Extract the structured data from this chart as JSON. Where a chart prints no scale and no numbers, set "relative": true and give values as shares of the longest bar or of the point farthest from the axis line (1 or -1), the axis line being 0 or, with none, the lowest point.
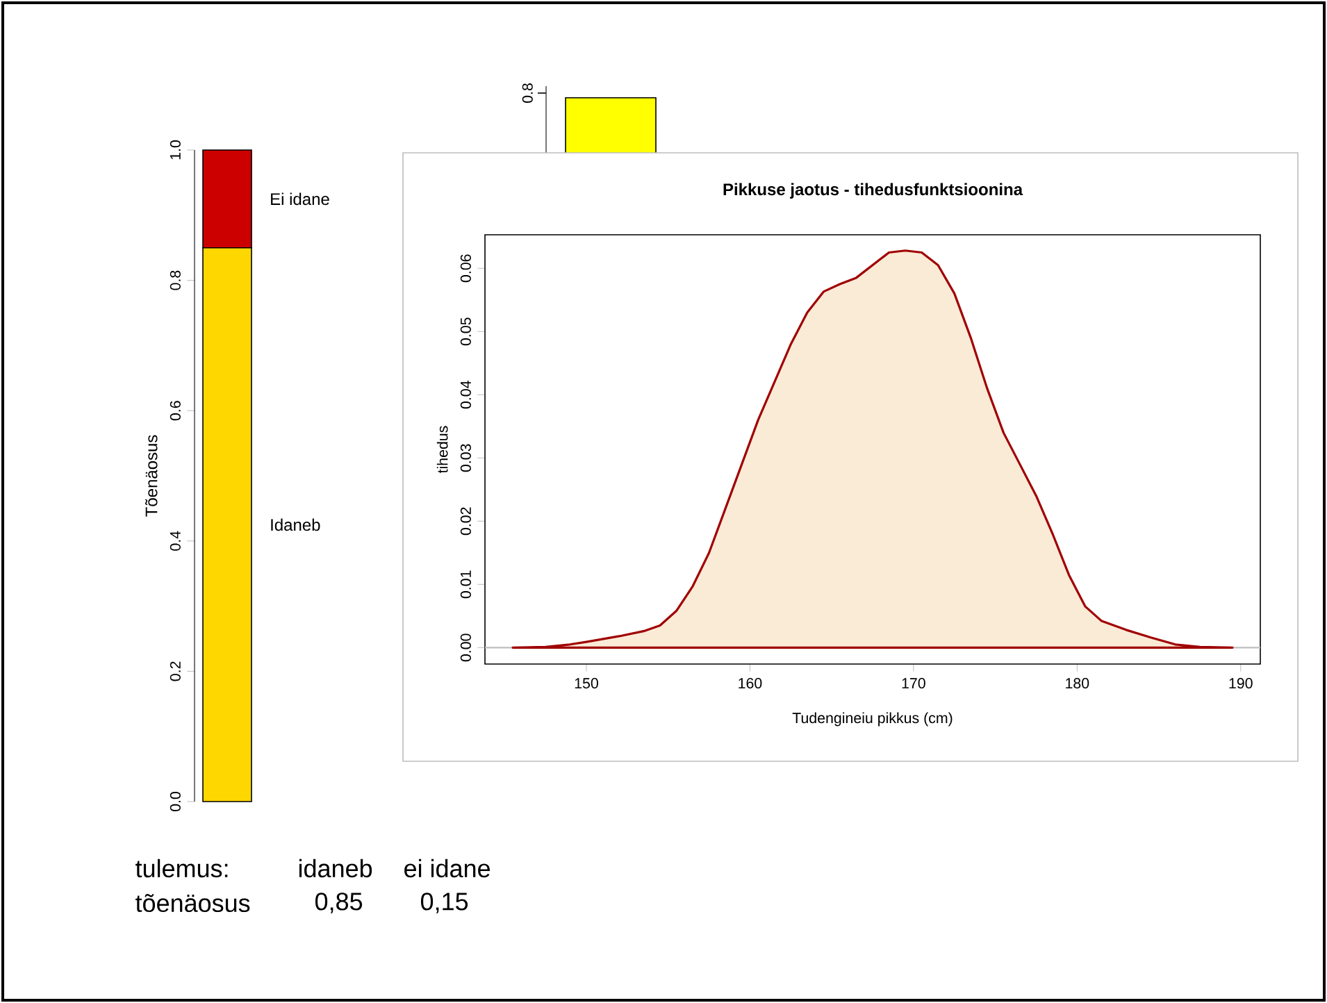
{
  "chart_data": [
    {
      "type": "bar",
      "stacked": true,
      "categories": [
        null
      ],
      "ylabel": "Tõenäosus",
      "ylim": [
        0,
        1
      ],
      "yticks": [
        {
          "value": 0,
          "label": "0.0"
        },
        {
          "value": 0.2,
          "label": "0.2"
        },
        {
          "value": 0.4,
          "label": "0.4"
        },
        {
          "value": 0.6,
          "label": "0.6"
        },
        {
          "value": 0.8,
          "label": "0.8"
        },
        {
          "value": 1,
          "label": "1.0"
        }
      ],
      "tick_labels": "y",
      "series": [
        {
          "name": "Idaneb",
          "color": "#ffd700",
          "values": [
            0.85
          ]
        },
        {
          "name": "Ei idane",
          "color": "#cd0000",
          "values": [
            0.15
          ]
        }
      ],
      "annotations": [
        "tulemus:",
        "idaneb",
        "ei idane",
        "tõenäosus",
        "0,85",
        "0,15"
      ]
    },
    {
      "type": "bar",
      "relative": true,
      "categories": [
        null
      ],
      "values": [
        1
      ],
      "color": "#ffff00",
      "annotations": [
        "0.8"
      ]
    },
    {
      "type": "area",
      "title": "Pikkuse jaotus - tihedusfunktsioonina",
      "xlabel": "Tudengineiu pikkus (cm)",
      "ylabel": "tihedus",
      "xlim": [
        143.8,
        191.2
      ],
      "ylim": [
        -0.0026,
        0.0653
      ],
      "xticks": [
        150,
        160,
        170,
        180,
        190
      ],
      "yticks": [
        {
          "value": 0,
          "label": "0.00"
        },
        {
          "value": 0.01,
          "label": "0.01"
        },
        {
          "value": 0.02,
          "label": "0.02"
        },
        {
          "value": 0.03,
          "label": "0.03"
        },
        {
          "value": 0.04,
          "label": "0.04"
        },
        {
          "value": 0.05,
          "label": "0.05"
        },
        {
          "value": 0.06,
          "label": "0.06"
        }
      ],
      "ref_lines": [
        {
          "axis": "y",
          "value": 0,
          "color": "#bebebe"
        }
      ],
      "series": [
        {
          "color": "#a00000",
          "x": [
            145.5,
            147.5,
            149,
            150,
            152,
            153.5,
            154.5,
            155.5,
            156.5,
            157.5,
            158.5,
            159.5,
            160.5,
            161.5,
            162.5,
            163.5,
            164.5,
            165.5,
            166.5,
            167.5,
            168.5,
            169.5,
            170.5,
            171.5,
            172.5,
            173.5,
            174.5,
            175.5,
            176.5,
            177.5,
            178.5,
            179.5,
            180.5,
            181.5,
            183,
            184.5,
            186,
            187.5,
            189.5
          ],
          "values": [
            0,
            0.0001,
            0.0005,
            0.0009,
            0.0018,
            0.0026,
            0.0035,
            0.0058,
            0.0097,
            0.015,
            0.022,
            0.029,
            0.036,
            0.042,
            0.048,
            0.053,
            0.0563,
            0.0575,
            0.0585,
            0.0605,
            0.0625,
            0.0628,
            0.0625,
            0.0605,
            0.056,
            0.049,
            0.041,
            0.034,
            0.029,
            0.024,
            0.018,
            0.0115,
            0.0065,
            0.0042,
            0.0028,
            0.0016,
            0.0005,
            0.0001,
            0
          ]
        }
      ]
    }
  ]
}
